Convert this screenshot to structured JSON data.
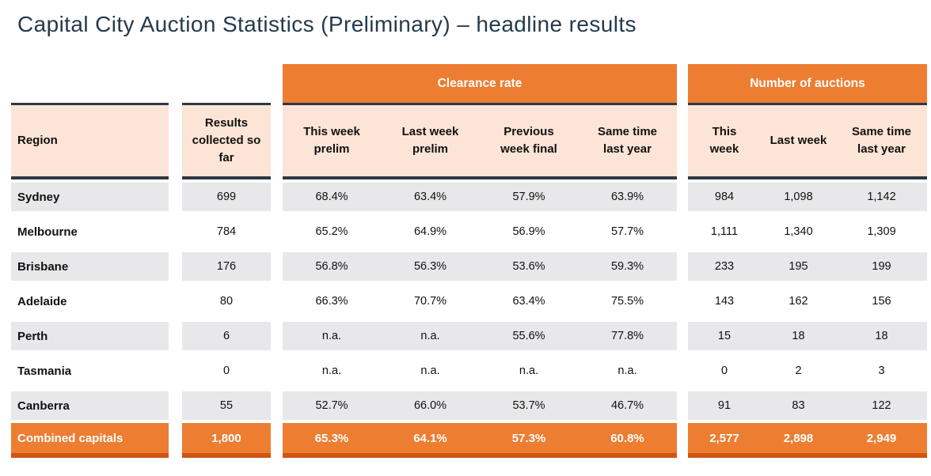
{
  "page": {
    "title": "Capital City Auction Statistics (Preliminary) – headline results"
  },
  "colors": {
    "orange": "#ed7d31",
    "orange_dark_border": "#cf5410",
    "peach_header": "#fce4d6",
    "row_gray": "#e8e7e9",
    "dark_border": "#2e3844",
    "title_text": "#253a4d"
  },
  "table": {
    "group_headers": {
      "clearance": "Clearance rate",
      "auctions": "Number of auctions"
    },
    "column_headers": {
      "region": "Region",
      "results": "Results\ncollected so\nfar",
      "clearance": [
        "This week\nprelim",
        "Last week\nprelim",
        "Previous\nweek final",
        "Same time\nlast year"
      ],
      "auctions": [
        "This\nweek",
        "Last week",
        "Same time\nlast year"
      ]
    },
    "rows": [
      {
        "region": "Sydney",
        "results": "699",
        "clearance": [
          "68.4%",
          "63.4%",
          "57.9%",
          "63.9%"
        ],
        "auctions": [
          "984",
          "1,098",
          "1,142"
        ]
      },
      {
        "region": "Melbourne",
        "results": "784",
        "clearance": [
          "65.2%",
          "64.9%",
          "56.9%",
          "57.7%"
        ],
        "auctions": [
          "1,111",
          "1,340",
          "1,309"
        ]
      },
      {
        "region": "Brisbane",
        "results": "176",
        "clearance": [
          "56.8%",
          "56.3%",
          "53.6%",
          "59.3%"
        ],
        "auctions": [
          "233",
          "195",
          "199"
        ]
      },
      {
        "region": "Adelaide",
        "results": "80",
        "clearance": [
          "66.3%",
          "70.7%",
          "63.4%",
          "75.5%"
        ],
        "auctions": [
          "143",
          "162",
          "156"
        ]
      },
      {
        "region": "Perth",
        "results": "6",
        "clearance": [
          "n.a.",
          "n.a.",
          "55.6%",
          "77.8%"
        ],
        "auctions": [
          "15",
          "18",
          "18"
        ]
      },
      {
        "region": "Tasmania",
        "results": "0",
        "clearance": [
          "n.a.",
          "n.a.",
          "n.a.",
          "n.a."
        ],
        "auctions": [
          "0",
          "2",
          "3"
        ]
      },
      {
        "region": "Canberra",
        "results": "55",
        "clearance": [
          "52.7%",
          "66.0%",
          "53.7%",
          "46.7%"
        ],
        "auctions": [
          "91",
          "83",
          "122"
        ]
      }
    ],
    "total_row": {
      "region": "Combined capitals",
      "results": "1,800",
      "clearance": [
        "65.3%",
        "64.1%",
        "57.3%",
        "60.8%"
      ],
      "auctions": [
        "2,577",
        "2,898",
        "2,949"
      ]
    }
  }
}
